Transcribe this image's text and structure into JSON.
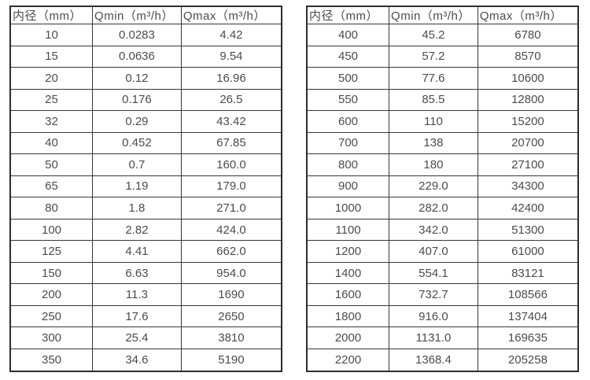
{
  "colors": {
    "text": "#4c4c4c",
    "border": "#383838",
    "outer_border": "#2d2d2d",
    "background": "#ffffff"
  },
  "tables": [
    {
      "name": "flow-spec-table-small-diameters",
      "headers": [
        "内径（mm）",
        "Qmin（m³/h）",
        "Qmax（m³/h）"
      ],
      "rows": [
        [
          "10",
          "0.0283",
          "4.42"
        ],
        [
          "15",
          "0.0636",
          "9.54"
        ],
        [
          "20",
          "0.12",
          "16.96"
        ],
        [
          "25",
          "0.176",
          "26.5"
        ],
        [
          "32",
          "0.29",
          "43.42"
        ],
        [
          "40",
          "0.452",
          "67.85"
        ],
        [
          "50",
          "0.7",
          "160.0"
        ],
        [
          "65",
          "1.19",
          "179.0"
        ],
        [
          "80",
          "1.8",
          "271.0"
        ],
        [
          "100",
          "2.82",
          "424.0"
        ],
        [
          "125",
          "4.41",
          "662.0"
        ],
        [
          "150",
          "6.63",
          "954.0"
        ],
        [
          "200",
          "11.3",
          "1690"
        ],
        [
          "250",
          "17.6",
          "2650"
        ],
        [
          "300",
          "25.4",
          "3810"
        ],
        [
          "350",
          "34.6",
          "5190"
        ]
      ]
    },
    {
      "name": "flow-spec-table-large-diameters",
      "headers": [
        "内径（mm）",
        "Qmin（m³/h）",
        "Qmax（m³/h）"
      ],
      "rows": [
        [
          "400",
          "45.2",
          "6780"
        ],
        [
          "450",
          "57.2",
          "8570"
        ],
        [
          "500",
          "77.6",
          "10600"
        ],
        [
          "550",
          "85.5",
          "12800"
        ],
        [
          "600",
          "110",
          "15200"
        ],
        [
          "700",
          "138",
          "20700"
        ],
        [
          "800",
          "180",
          "27100"
        ],
        [
          "900",
          "229.0",
          "34300"
        ],
        [
          "1000",
          "282.0",
          "42400"
        ],
        [
          "1100",
          "342.0",
          "51300"
        ],
        [
          "1200",
          "407.0",
          "61000"
        ],
        [
          "1400",
          "554.1",
          "83121"
        ],
        [
          "1600",
          "732.7",
          "108566"
        ],
        [
          "1800",
          "916.0",
          "137404"
        ],
        [
          "2000",
          "1131.0",
          "169635"
        ],
        [
          "2200",
          "1368.4",
          "205258"
        ]
      ]
    }
  ]
}
